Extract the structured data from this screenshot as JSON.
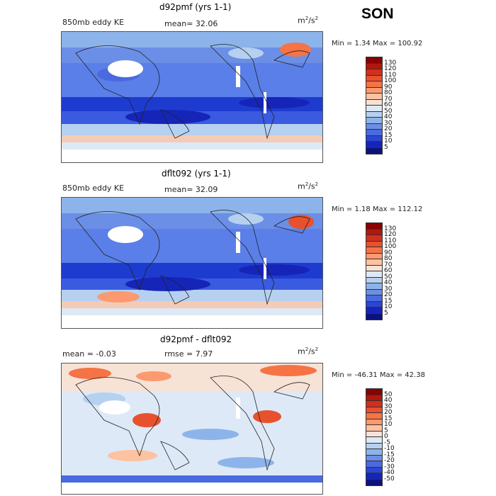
{
  "season": "SON",
  "panels": [
    {
      "title": "d92pmf (yrs 1-1)",
      "left_label": "850mb eddy KE",
      "center_label": "mean=  32.06",
      "units_base": "m",
      "units_exp1": "2",
      "units_mid": "/s",
      "units_exp2": "2",
      "minmax": "Min =    1.34 Max = 100.92",
      "colorbar_labels": [
        "130",
        "120",
        "110",
        "100",
        "90",
        "80",
        "70",
        "60",
        "50",
        "40",
        "30",
        "20",
        "15",
        "10",
        "5"
      ],
      "colorbar_colors": [
        "#8b0000",
        "#b0170f",
        "#d0301c",
        "#e8512e",
        "#f57345",
        "#fb9a6e",
        "#fcc2a2",
        "#f7e2d6",
        "#dde9f6",
        "#b6d0f0",
        "#8db4ea",
        "#6b8fe6",
        "#4a6ae0",
        "#2b45d6",
        "#1525b8",
        "#0c127d"
      ]
    },
    {
      "title": "dflt092 (yrs 1-1)",
      "left_label": "850mb eddy KE",
      "center_label": "mean=  32.09",
      "units_base": "m",
      "units_exp1": "2",
      "units_mid": "/s",
      "units_exp2": "2",
      "minmax": "Min =    1.18 Max = 112.12",
      "colorbar_labels": [
        "130",
        "120",
        "110",
        "100",
        "90",
        "80",
        "70",
        "60",
        "50",
        "40",
        "30",
        "20",
        "15",
        "10",
        "5"
      ],
      "colorbar_colors": [
        "#8b0000",
        "#b0170f",
        "#d0301c",
        "#e8512e",
        "#f57345",
        "#fb9a6e",
        "#fcc2a2",
        "#f7e2d6",
        "#dde9f6",
        "#b6d0f0",
        "#8db4ea",
        "#6b8fe6",
        "#4a6ae0",
        "#2b45d6",
        "#1525b8",
        "#0c127d"
      ]
    },
    {
      "title": "d92pmf - dflt092",
      "left_label": "mean =   -0.03",
      "center_label": "rmse =    7.97",
      "units_base": "m",
      "units_exp1": "2",
      "units_mid": "/s",
      "units_exp2": "2",
      "minmax": "Min = -46.31 Max =  42.38",
      "colorbar_labels": [
        "50",
        "40",
        "30",
        "20",
        "15",
        "10",
        "5",
        "0",
        "-5",
        "-10",
        "-15",
        "-20",
        "-30",
        "-40",
        "-50"
      ],
      "colorbar_colors": [
        "#8b0000",
        "#b0170f",
        "#d0301c",
        "#e8512e",
        "#f57345",
        "#fb9a6e",
        "#fcc2a2",
        "#f7e2d6",
        "#dde9f6",
        "#b6d0f0",
        "#8db4ea",
        "#6b8fe6",
        "#4a6ae0",
        "#2b45d6",
        "#1525b8",
        "#0c127d"
      ]
    }
  ]
}
